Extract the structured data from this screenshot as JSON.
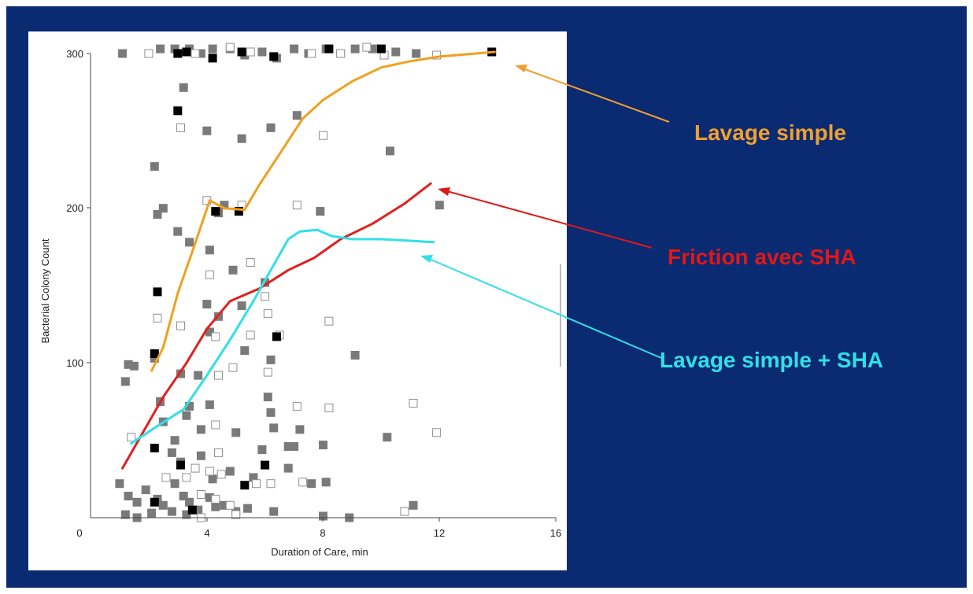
{
  "chart_data": {
    "type": "scatter",
    "title": "",
    "xlabel": "Duration of Care, min",
    "ylabel": "Bacterial Colony Count",
    "xlim": [
      0,
      16
    ],
    "ylim": [
      0,
      300
    ],
    "x_ticks": [
      "0",
      "4",
      "8",
      "12",
      "16"
    ],
    "y_ticks": [
      "100",
      "200",
      "300"
    ],
    "grid": false,
    "points": {
      "gray": [
        [
          1.1,
          300
        ],
        [
          2.4,
          303
        ],
        [
          2.9,
          303
        ],
        [
          3.4,
          303
        ],
        [
          3.8,
          300
        ],
        [
          4.2,
          303
        ],
        [
          4.8,
          303
        ],
        [
          5.3,
          299
        ],
        [
          5.9,
          301
        ],
        [
          6.4,
          297
        ],
        [
          7.0,
          303
        ],
        [
          7.5,
          300
        ],
        [
          8.1,
          303
        ],
        [
          8.6,
          300
        ],
        [
          9.1,
          303
        ],
        [
          9.7,
          303
        ],
        [
          10.5,
          301
        ],
        [
          11.2,
          300
        ],
        [
          3.2,
          278
        ],
        [
          4.0,
          250
        ],
        [
          5.2,
          245
        ],
        [
          6.2,
          252
        ],
        [
          7.1,
          260
        ],
        [
          10.3,
          237
        ],
        [
          2.2,
          227
        ],
        [
          2.5,
          200
        ],
        [
          2.3,
          196
        ],
        [
          4.6,
          202
        ],
        [
          4.4,
          197
        ],
        [
          7.9,
          198
        ],
        [
          12.0,
          202
        ],
        [
          3.0,
          185
        ],
        [
          3.4,
          178
        ],
        [
          4.1,
          173
        ],
        [
          6.0,
          152
        ],
        [
          4.9,
          160
        ],
        [
          5.2,
          137
        ],
        [
          4.4,
          130
        ],
        [
          4.1,
          120
        ],
        [
          5.3,
          108
        ],
        [
          6.2,
          102
        ],
        [
          9.1,
          105
        ],
        [
          3.1,
          93
        ],
        [
          3.7,
          92
        ],
        [
          4.0,
          138
        ],
        [
          1.3,
          99
        ],
        [
          1.5,
          98
        ],
        [
          1.2,
          88
        ],
        [
          2.2,
          103
        ],
        [
          2.4,
          75
        ],
        [
          2.5,
          62
        ],
        [
          3.3,
          66
        ],
        [
          2.9,
          50
        ],
        [
          3.4,
          72
        ],
        [
          3.8,
          57
        ],
        [
          4.1,
          73
        ],
        [
          5.0,
          55
        ],
        [
          6.1,
          78
        ],
        [
          6.2,
          68
        ],
        [
          6.3,
          58
        ],
        [
          6.8,
          46
        ],
        [
          7.0,
          46
        ],
        [
          7.2,
          57
        ],
        [
          8.0,
          47
        ],
        [
          10.2,
          52
        ],
        [
          2.8,
          42
        ],
        [
          3.1,
          36
        ],
        [
          3.8,
          40
        ],
        [
          4.2,
          25
        ],
        [
          4.8,
          30
        ],
        [
          5.6,
          26
        ],
        [
          5.9,
          44
        ],
        [
          6.8,
          32
        ],
        [
          7.6,
          22
        ],
        [
          8.1,
          23
        ],
        [
          4.1,
          13
        ],
        [
          4.6,
          8
        ],
        [
          1.0,
          22
        ],
        [
          1.3,
          14
        ],
        [
          1.6,
          10
        ],
        [
          1.9,
          18
        ],
        [
          2.3,
          12
        ],
        [
          2.5,
          8
        ],
        [
          2.9,
          22
        ],
        [
          3.2,
          14
        ],
        [
          3.4,
          10
        ],
        [
          3.7,
          5
        ],
        [
          4.3,
          7
        ],
        [
          5.0,
          4
        ],
        [
          5.4,
          6
        ],
        [
          1.2,
          2
        ],
        [
          1.6,
          0
        ],
        [
          2.1,
          3
        ],
        [
          2.8,
          4
        ],
        [
          3.3,
          2
        ],
        [
          6.3,
          4
        ],
        [
          8.0,
          1
        ],
        [
          8.9,
          0
        ],
        [
          11.1,
          8
        ]
      ],
      "black": [
        [
          3.0,
          300
        ],
        [
          3.3,
          301
        ],
        [
          4.2,
          297
        ],
        [
          5.2,
          301
        ],
        [
          6.3,
          298
        ],
        [
          8.2,
          303
        ],
        [
          10.0,
          303
        ],
        [
          13.8,
          301
        ],
        [
          3.0,
          263
        ],
        [
          4.3,
          198
        ],
        [
          5.1,
          198
        ],
        [
          2.3,
          146
        ],
        [
          2.2,
          106
        ],
        [
          6.4,
          117
        ],
        [
          2.2,
          45
        ],
        [
          3.1,
          34
        ],
        [
          5.3,
          21
        ],
        [
          6.0,
          34
        ],
        [
          2.2,
          10
        ],
        [
          3.5,
          5
        ]
      ],
      "hollow": [
        [
          2.0,
          300
        ],
        [
          3.6,
          300
        ],
        [
          4.8,
          304
        ],
        [
          5.5,
          301
        ],
        [
          7.6,
          300
        ],
        [
          8.6,
          300
        ],
        [
          9.5,
          304
        ],
        [
          10.1,
          299
        ],
        [
          11.9,
          299
        ],
        [
          3.1,
          252
        ],
        [
          8.0,
          247
        ],
        [
          4.0,
          205
        ],
        [
          5.2,
          202
        ],
        [
          7.1,
          202
        ],
        [
          5.5,
          165
        ],
        [
          4.1,
          157
        ],
        [
          2.3,
          129
        ],
        [
          3.1,
          124
        ],
        [
          5.5,
          118
        ],
        [
          4.3,
          117
        ],
        [
          6.0,
          143
        ],
        [
          6.1,
          132
        ],
        [
          6.5,
          118
        ],
        [
          1.4,
          52
        ],
        [
          4.4,
          92
        ],
        [
          4.9,
          97
        ],
        [
          6.1,
          94
        ],
        [
          8.2,
          127
        ],
        [
          7.1,
          72
        ],
        [
          8.2,
          71
        ],
        [
          11.1,
          74
        ],
        [
          11.9,
          55
        ],
        [
          4.3,
          60
        ],
        [
          4.4,
          42
        ],
        [
          4.5,
          28
        ],
        [
          4.1,
          30
        ],
        [
          2.6,
          26
        ],
        [
          3.3,
          26
        ],
        [
          3.6,
          32
        ],
        [
          5.7,
          22
        ],
        [
          6.2,
          22
        ],
        [
          7.3,
          23
        ],
        [
          3.8,
          15
        ],
        [
          4.3,
          12
        ],
        [
          4.8,
          8
        ],
        [
          5.0,
          2
        ],
        [
          10.8,
          4
        ],
        [
          3.8,
          0
        ]
      ]
    },
    "curves": [
      {
        "color": "#f0a020",
        "points": [
          [
            2.1,
            95
          ],
          [
            2.5,
            110
          ],
          [
            3.0,
            145
          ],
          [
            3.5,
            172
          ],
          [
            4.1,
            205
          ],
          [
            4.6,
            200
          ],
          [
            5.3,
            199
          ],
          [
            5.8,
            215
          ],
          [
            6.5,
            235
          ],
          [
            7.3,
            258
          ],
          [
            8.0,
            270
          ],
          [
            9.0,
            282
          ],
          [
            10.0,
            291
          ],
          [
            11.0,
            295
          ],
          [
            12.0,
            298
          ],
          [
            13.9,
            301
          ]
        ]
      },
      {
        "color": "#e02020",
        "points": [
          [
            1.1,
            32
          ],
          [
            1.8,
            55
          ],
          [
            2.5,
            78
          ],
          [
            3.3,
            100
          ],
          [
            4.0,
            122
          ],
          [
            4.8,
            140
          ],
          [
            5.8,
            148
          ],
          [
            6.8,
            160
          ],
          [
            7.7,
            168
          ],
          [
            8.6,
            180
          ],
          [
            9.7,
            190
          ],
          [
            10.8,
            203
          ],
          [
            11.7,
            216
          ]
        ]
      },
      {
        "color": "#30e0e8",
        "points": [
          [
            1.4,
            48
          ],
          [
            2.2,
            58
          ],
          [
            3.2,
            70
          ],
          [
            4.0,
            92
          ],
          [
            4.8,
            115
          ],
          [
            5.6,
            140
          ],
          [
            6.2,
            160
          ],
          [
            6.8,
            180
          ],
          [
            7.2,
            185
          ],
          [
            7.8,
            186
          ],
          [
            8.3,
            182
          ],
          [
            9.0,
            180
          ],
          [
            10.0,
            180
          ],
          [
            11.0,
            179
          ],
          [
            11.8,
            178
          ]
        ]
      }
    ],
    "annotations": [
      {
        "text": "Lavage simple",
        "color": "#f0a030"
      },
      {
        "text": "Friction avec SHA",
        "color": "#e01818"
      },
      {
        "text": "Lavage simple + SHA",
        "color": "#30e0e8"
      }
    ]
  }
}
